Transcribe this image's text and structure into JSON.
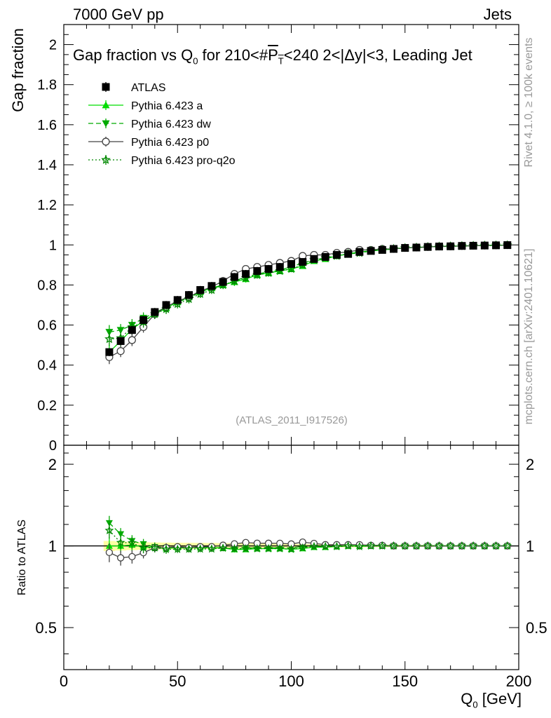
{
  "header": {
    "energy_label": "7000 GeV pp",
    "process_label": "Jets"
  },
  "side": {
    "rivet_label": "Rivet 4.1.0, ≥ 100k events",
    "mcplots_label": "mcplots.cern.ch [arXiv:2401.10621]"
  },
  "chart_data": {
    "type": "scatter",
    "title": "Gap fraction vs Q0 for 210<#PT<240  2<|Δy|<3, Leading Jet",
    "title_parts": {
      "before_q": "Gap fraction vs Q",
      "q_sub": "0",
      "middle": " for 210<#",
      "pt_p": "P",
      "pt_t": "T",
      "after": "<240  2<|Δy|<3, Leading Jet"
    },
    "watermark": "(ATLAS_2011_I917526)",
    "xlabel": "Q0 [GeV]",
    "xlabel_parts": {
      "q": "Q",
      "sub": "0",
      "unit": " [GeV]"
    },
    "ylabel": "Gap fraction",
    "ratio_ylabel": "Ratio to ATLAS",
    "xlim": [
      0,
      200
    ],
    "ylim": [
      0,
      2.1
    ],
    "ratio_ylim": [
      0.35,
      2.35
    ],
    "x_ticks": [
      0,
      50,
      100,
      150,
      200
    ],
    "x_tick_labels": [
      "0",
      "50",
      "100",
      "150",
      "200"
    ],
    "y_ticks": [
      0,
      0.2,
      0.4,
      0.6,
      0.8,
      1,
      1.2,
      1.4,
      1.6,
      1.8,
      2
    ],
    "y_tick_labels": [
      "0",
      "0.2",
      "0.4",
      "0.6",
      "0.8",
      "1",
      "1.2",
      "1.4",
      "1.6",
      "1.8",
      "2"
    ],
    "ratio_ticks": [
      0.5,
      1,
      2
    ],
    "ratio_tick_labels": [
      "0.5",
      "1",
      "2"
    ],
    "x": [
      20,
      25,
      30,
      35,
      40,
      45,
      50,
      55,
      60,
      65,
      70,
      75,
      80,
      85,
      90,
      95,
      100,
      105,
      110,
      115,
      120,
      125,
      130,
      135,
      140,
      145,
      150,
      155,
      160,
      165,
      170,
      175,
      180,
      185,
      190,
      195
    ],
    "series": [
      {
        "name": "ATLAS",
        "color": "#000000",
        "marker": "square",
        "line": "none",
        "values": [
          0.465,
          0.52,
          0.575,
          0.625,
          0.665,
          0.7,
          0.725,
          0.75,
          0.775,
          0.795,
          0.815,
          0.84,
          0.855,
          0.87,
          0.88,
          0.89,
          0.905,
          0.915,
          0.93,
          0.94,
          0.95,
          0.955,
          0.965,
          0.97,
          0.975,
          0.98,
          0.985,
          0.987,
          0.99,
          0.992,
          0.993,
          0.995,
          0.996,
          0.997,
          0.998,
          0.999
        ],
        "errors": [
          0.02,
          0.02,
          0.02,
          0.02,
          0.02,
          0.02,
          0.02,
          0.02,
          0.02,
          0.02,
          0.02,
          0.02,
          0.02,
          0.02,
          0.02,
          0.02,
          0.015,
          0.015,
          0.015,
          0.015,
          0.012,
          0.012,
          0.012,
          0.01,
          0.01,
          0.01,
          0.008,
          0.008,
          0.008,
          0.006,
          0.006,
          0.005,
          0.005,
          0.004,
          0.004,
          0.003
        ]
      },
      {
        "name": "Pythia 6.423 a",
        "color": "#00dd00",
        "marker": "triangle-up",
        "line": "solid",
        "values": [
          0.465,
          0.52,
          0.58,
          0.62,
          0.655,
          0.685,
          0.715,
          0.74,
          0.765,
          0.785,
          0.8,
          0.815,
          0.83,
          0.85,
          0.86,
          0.87,
          0.88,
          0.895,
          0.92,
          0.93,
          0.945,
          0.955,
          0.965,
          0.97,
          0.975,
          0.98,
          0.985,
          0.987,
          0.99,
          0.992,
          0.993,
          0.995,
          0.996,
          0.997,
          0.998,
          0.999
        ],
        "errors": [
          0.035,
          0.03,
          0.03,
          0.028,
          0.025,
          0.025,
          0.022,
          0.022,
          0.02,
          0.02,
          0.02,
          0.02,
          0.018,
          0.018,
          0.018,
          0.016,
          0.016,
          0.015,
          0.014,
          0.013,
          0.012,
          0.011,
          0.01,
          0.01,
          0.009,
          0.008,
          0.007,
          0.006,
          0.006,
          0.005,
          0.005,
          0.004,
          0.004,
          0.003,
          0.003,
          0.002
        ]
      },
      {
        "name": "Pythia 6.423 dw",
        "color": "#00aa00",
        "marker": "triangle-down",
        "line": "dashed",
        "values": [
          0.565,
          0.575,
          0.6,
          0.635,
          0.66,
          0.69,
          0.715,
          0.735,
          0.765,
          0.78,
          0.8,
          0.82,
          0.84,
          0.855,
          0.865,
          0.875,
          0.89,
          0.91,
          0.925,
          0.935,
          0.945,
          0.955,
          0.96,
          0.97,
          0.975,
          0.98,
          0.985,
          0.987,
          0.99,
          0.992,
          0.993,
          0.995,
          0.996,
          0.997,
          0.998,
          0.999
        ],
        "errors": [
          0.035,
          0.03,
          0.03,
          0.028,
          0.025,
          0.025,
          0.022,
          0.022,
          0.02,
          0.02,
          0.02,
          0.02,
          0.018,
          0.018,
          0.018,
          0.016,
          0.016,
          0.015,
          0.014,
          0.013,
          0.012,
          0.011,
          0.01,
          0.01,
          0.009,
          0.008,
          0.007,
          0.006,
          0.006,
          0.005,
          0.005,
          0.004,
          0.004,
          0.003,
          0.003,
          0.002
        ]
      },
      {
        "name": "Pythia 6.423 p0",
        "color": "#444444",
        "marker": "circle-open",
        "line": "solid",
        "values": [
          0.44,
          0.47,
          0.525,
          0.59,
          0.655,
          0.69,
          0.72,
          0.74,
          0.77,
          0.79,
          0.82,
          0.855,
          0.88,
          0.89,
          0.9,
          0.91,
          0.92,
          0.945,
          0.95,
          0.95,
          0.96,
          0.965,
          0.975,
          0.975,
          0.98,
          0.98,
          0.985,
          0.987,
          0.99,
          0.992,
          0.993,
          0.995,
          0.996,
          0.997,
          0.998,
          0.999
        ],
        "errors": [
          0.035,
          0.03,
          0.03,
          0.028,
          0.025,
          0.025,
          0.022,
          0.022,
          0.02,
          0.02,
          0.02,
          0.02,
          0.018,
          0.018,
          0.018,
          0.016,
          0.016,
          0.015,
          0.014,
          0.013,
          0.012,
          0.011,
          0.01,
          0.01,
          0.009,
          0.008,
          0.007,
          0.006,
          0.006,
          0.005,
          0.005,
          0.004,
          0.004,
          0.003,
          0.003,
          0.002
        ]
      },
      {
        "name": "Pythia 6.423 pro-q2o",
        "color": "#008800",
        "marker": "star-open",
        "line": "dotted",
        "values": [
          0.53,
          0.535,
          0.59,
          0.615,
          0.655,
          0.68,
          0.705,
          0.73,
          0.755,
          0.775,
          0.8,
          0.82,
          0.835,
          0.85,
          0.86,
          0.87,
          0.88,
          0.9,
          0.925,
          0.935,
          0.945,
          0.955,
          0.96,
          0.97,
          0.975,
          0.98,
          0.985,
          0.987,
          0.99,
          0.992,
          0.993,
          0.995,
          0.996,
          0.997,
          0.998,
          0.999
        ],
        "errors": [
          0.035,
          0.03,
          0.03,
          0.028,
          0.025,
          0.025,
          0.022,
          0.022,
          0.02,
          0.02,
          0.02,
          0.02,
          0.018,
          0.018,
          0.018,
          0.016,
          0.016,
          0.015,
          0.014,
          0.013,
          0.012,
          0.011,
          0.01,
          0.01,
          0.009,
          0.008,
          0.007,
          0.006,
          0.006,
          0.005,
          0.005,
          0.004,
          0.004,
          0.003,
          0.003,
          0.002
        ]
      }
    ]
  }
}
